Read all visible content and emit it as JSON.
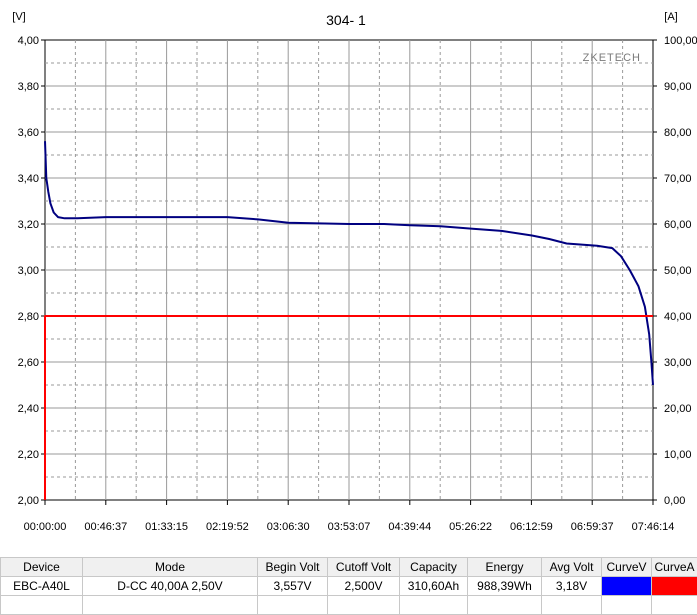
{
  "chart_data": {
    "type": "line",
    "title": "304- 1",
    "watermark": "ZKETECH",
    "left_unit": "[V]",
    "right_unit": "[A]",
    "ylim_left": [
      2.0,
      4.0
    ],
    "ylim_right": [
      0,
      100
    ],
    "xlim_seconds": [
      0,
      27974
    ],
    "grid": true,
    "y_ticks_left": [
      "2,00",
      "2,20",
      "2,40",
      "2,60",
      "2,80",
      "3,00",
      "3,20",
      "3,40",
      "3,60",
      "3,80",
      "4,00"
    ],
    "y_ticks_right": [
      "0,00",
      "10,00",
      "20,00",
      "30,00",
      "40,00",
      "50,00",
      "60,00",
      "70,00",
      "80,00",
      "90,00",
      "100,00"
    ],
    "x_ticks": [
      "00:00:00",
      "00:46:37",
      "01:33:15",
      "02:19:52",
      "03:06:30",
      "03:53:07",
      "04:39:44",
      "05:26:22",
      "06:12:59",
      "06:59:37",
      "07:46:14"
    ],
    "series": [
      {
        "axis": "left",
        "color": "#000080",
        "x": [
          0,
          60,
          150,
          250,
          400,
          600,
          900,
          1500,
          2800,
          5600,
          8390,
          9800,
          11200,
          14000,
          15600,
          16800,
          18200,
          19600,
          21000,
          22400,
          23200,
          24000,
          25400,
          26100,
          26500,
          26900,
          27300,
          27600,
          27800,
          27900,
          27974
        ],
        "values": [
          3.56,
          3.4,
          3.34,
          3.29,
          3.25,
          3.23,
          3.225,
          3.225,
          3.23,
          3.23,
          3.23,
          3.22,
          3.205,
          3.2,
          3.2,
          3.195,
          3.19,
          3.18,
          3.17,
          3.15,
          3.135,
          3.115,
          3.105,
          3.095,
          3.06,
          3.0,
          2.93,
          2.84,
          2.72,
          2.6,
          2.5
        ]
      },
      {
        "axis": "right",
        "color": "#ff0000",
        "x": [
          0,
          0,
          27974
        ],
        "values": [
          0,
          40,
          40
        ]
      }
    ]
  },
  "table": {
    "headers": [
      "Device",
      "Mode",
      "Begin Volt",
      "Cutoff Volt",
      "Capacity",
      "Energy",
      "Avg Volt",
      "CurveV",
      "CurveA"
    ],
    "row": [
      "EBC-A40L",
      "D-CC  40,00A  2,50V",
      "3,557V",
      "2,500V",
      "310,60Ah",
      "988,39Wh",
      "3,18V"
    ],
    "curve_v_color": "#0000ff",
    "curve_a_color": "#ff0000"
  }
}
